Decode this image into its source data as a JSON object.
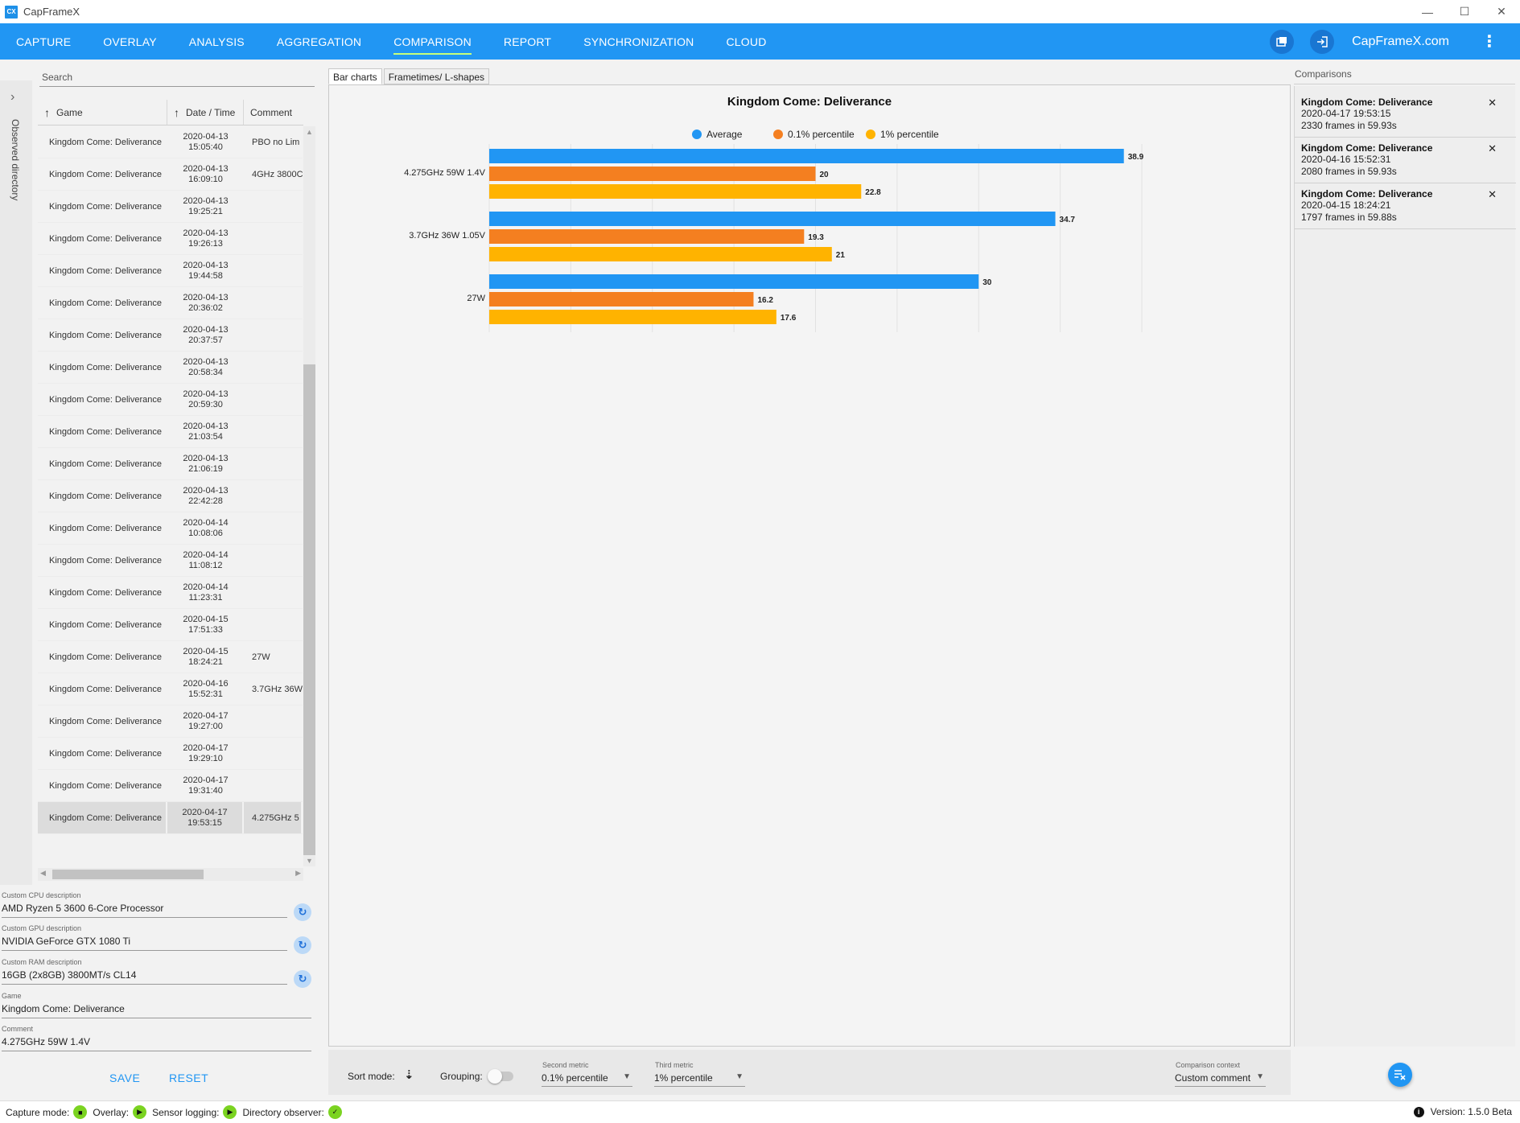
{
  "app": {
    "title": "CapFrameX",
    "logo_text": "CX",
    "window_controls": [
      "—",
      "☐",
      "✕"
    ]
  },
  "nav": {
    "tabs": [
      {
        "label": "CAPTURE"
      },
      {
        "label": "OVERLAY"
      },
      {
        "label": "ANALYSIS"
      },
      {
        "label": "AGGREGATION"
      },
      {
        "label": "COMPARISON",
        "active": true
      },
      {
        "label": "REPORT"
      },
      {
        "label": "SYNCHRONIZATION"
      },
      {
        "label": "CLOUD"
      }
    ],
    "brand": "CapFrameX.com",
    "icons": [
      "screenshot-icon",
      "login-icon",
      "more-vert-icon"
    ]
  },
  "sidebar": {
    "label": "Observed directory",
    "chevron": "›"
  },
  "records": {
    "search_placeholder": "Search",
    "columns": {
      "game": "Game",
      "date": "Date / Time",
      "comment": "Comment"
    },
    "rows": [
      {
        "game": "Kingdom Come: Deliverance",
        "date": "2020-04-13",
        "time": "15:05:40",
        "comment": "PBO no Lim"
      },
      {
        "game": "Kingdom Come: Deliverance",
        "date": "2020-04-13",
        "time": "16:09:10",
        "comment": "4GHz 3800C"
      },
      {
        "game": "Kingdom Come: Deliverance",
        "date": "2020-04-13",
        "time": "19:25:21",
        "comment": ""
      },
      {
        "game": "Kingdom Come: Deliverance",
        "date": "2020-04-13",
        "time": "19:26:13",
        "comment": ""
      },
      {
        "game": "Kingdom Come: Deliverance",
        "date": "2020-04-13",
        "time": "19:44:58",
        "comment": ""
      },
      {
        "game": "Kingdom Come: Deliverance",
        "date": "2020-04-13",
        "time": "20:36:02",
        "comment": ""
      },
      {
        "game": "Kingdom Come: Deliverance",
        "date": "2020-04-13",
        "time": "20:37:57",
        "comment": ""
      },
      {
        "game": "Kingdom Come: Deliverance",
        "date": "2020-04-13",
        "time": "20:58:34",
        "comment": ""
      },
      {
        "game": "Kingdom Come: Deliverance",
        "date": "2020-04-13",
        "time": "20:59:30",
        "comment": ""
      },
      {
        "game": "Kingdom Come: Deliverance",
        "date": "2020-04-13",
        "time": "21:03:54",
        "comment": ""
      },
      {
        "game": "Kingdom Come: Deliverance",
        "date": "2020-04-13",
        "time": "21:06:19",
        "comment": ""
      },
      {
        "game": "Kingdom Come: Deliverance",
        "date": "2020-04-13",
        "time": "22:42:28",
        "comment": ""
      },
      {
        "game": "Kingdom Come: Deliverance",
        "date": "2020-04-14",
        "time": "10:08:06",
        "comment": ""
      },
      {
        "game": "Kingdom Come: Deliverance",
        "date": "2020-04-14",
        "time": "11:08:12",
        "comment": ""
      },
      {
        "game": "Kingdom Come: Deliverance",
        "date": "2020-04-14",
        "time": "11:23:31",
        "comment": ""
      },
      {
        "game": "Kingdom Come: Deliverance",
        "date": "2020-04-15",
        "time": "17:51:33",
        "comment": ""
      },
      {
        "game": "Kingdom Come: Deliverance",
        "date": "2020-04-15",
        "time": "18:24:21",
        "comment": "27W"
      },
      {
        "game": "Kingdom Come: Deliverance",
        "date": "2020-04-16",
        "time": "15:52:31",
        "comment": "3.7GHz 36W"
      },
      {
        "game": "Kingdom Come: Deliverance",
        "date": "2020-04-17",
        "time": "19:27:00",
        "comment": ""
      },
      {
        "game": "Kingdom Come: Deliverance",
        "date": "2020-04-17",
        "time": "19:29:10",
        "comment": ""
      },
      {
        "game": "Kingdom Come: Deliverance",
        "date": "2020-04-17",
        "time": "19:31:40",
        "comment": ""
      },
      {
        "game": "Kingdom Come: Deliverance",
        "date": "2020-04-17",
        "time": "19:53:15",
        "comment": "4.275GHz 5",
        "selected": true
      }
    ]
  },
  "details": {
    "cpu_label": "Custom CPU description",
    "cpu_value": "AMD Ryzen 5 3600 6-Core Processor",
    "gpu_label": "Custom GPU description",
    "gpu_value": "NVIDIA GeForce GTX 1080 Ti",
    "ram_label": "Custom RAM description",
    "ram_value": "16GB (2x8GB) 3800MT/s CL14",
    "game_label": "Game",
    "game_value": "Kingdom Come: Deliverance",
    "comment_label": "Comment",
    "comment_value": "4.275GHz 59W 1.4V",
    "save_label": "SAVE",
    "reset_label": "RESET",
    "refresh_icon": "↻"
  },
  "center": {
    "tabs": [
      {
        "label": "Bar charts",
        "active": true
      },
      {
        "label": "Frametimes/ L-shapes"
      }
    ]
  },
  "chart_data": {
    "type": "bar",
    "orientation": "horizontal",
    "title": "Kingdom Come: Deliverance",
    "categories": [
      "4.275GHz 59W 1.4V",
      "3.7GHz 36W 1.05V",
      "27W"
    ],
    "series": [
      {
        "name": "Average",
        "values": [
          38.9,
          34.7,
          30
        ],
        "color": "#2196f3"
      },
      {
        "name": "0.1% percentile",
        "values": [
          20,
          19.3,
          16.2
        ],
        "color": "#f47f20"
      },
      {
        "name": "1% percentile",
        "values": [
          22.8,
          21,
          17.6
        ],
        "color": "#ffb300"
      }
    ],
    "xlim": [
      0,
      40
    ],
    "legend": "top-center",
    "grid": true
  },
  "controls": {
    "sort_label": "Sort mode:",
    "grouping_label": "Grouping:",
    "second_metric_label": "Second metric",
    "second_metric_value": "0.1% percentile",
    "third_metric_label": "Third metric",
    "third_metric_value": "1% percentile",
    "context_label": "Comparison context",
    "context_value": "Custom comment",
    "caret": "▼",
    "sort_icon": "⇣"
  },
  "comparisons": {
    "header": "Comparisons",
    "close_glyph": "✕",
    "items": [
      {
        "title": "Kingdom Come: Deliverance",
        "datetime": "2020-04-17 19:53:15",
        "frames": "2330 frames in 59.93s"
      },
      {
        "title": "Kingdom Come: Deliverance",
        "datetime": "2020-04-16 15:52:31",
        "frames": "2080 frames in 59.93s"
      },
      {
        "title": "Kingdom Come: Deliverance",
        "datetime": "2020-04-15 18:24:21",
        "frames": "1797 frames in 59.88s"
      }
    ],
    "clear_icon": "≡×"
  },
  "status": {
    "capture_label": "Capture mode:",
    "overlay_label": "Overlay:",
    "sensor_label": "Sensor logging:",
    "observer_label": "Directory observer:",
    "stop_glyph": "■",
    "play_glyph": "▶",
    "check_glyph": "✓",
    "info_glyph": "i",
    "version": "Version: 1.5.0 Beta"
  }
}
